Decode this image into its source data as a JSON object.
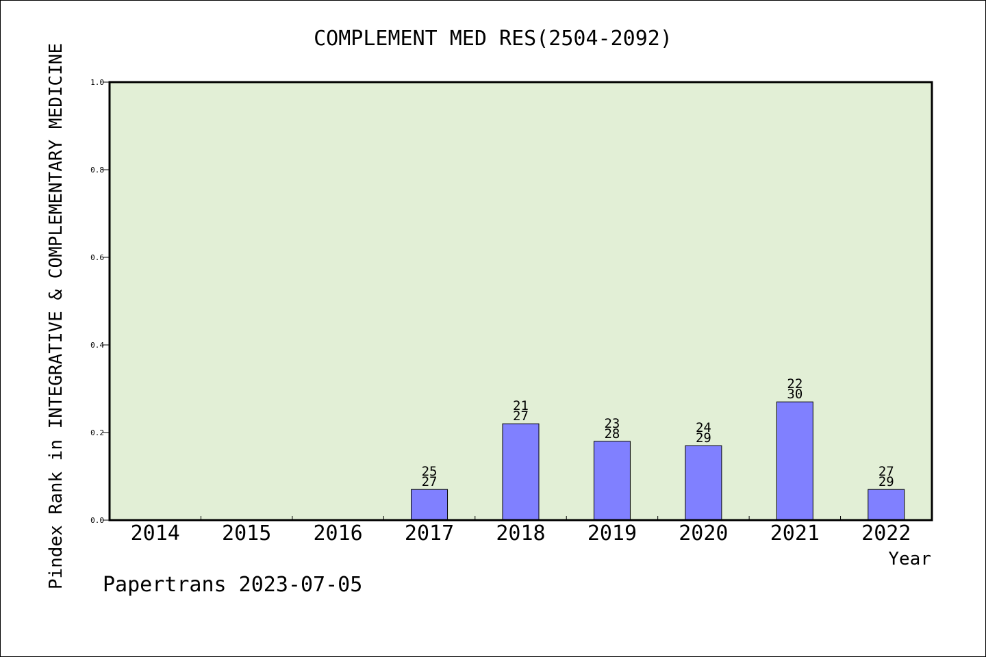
{
  "chart_data": {
    "type": "bar",
    "title": "COMPLEMENT MED RES(2504-2092)",
    "ylabel": "Pindex Rank in INTEGRATIVE & COMPLEMENTARY MEDICINE",
    "xlabel": "Year",
    "footer": "Papertrans 2023-07-05",
    "ylim": [
      0,
      1.0
    ],
    "yticks": [
      "0.0",
      "0.2",
      "0.4",
      "0.6",
      "0.8",
      "1.0"
    ],
    "ytick_values": [
      0,
      0.2,
      0.4,
      0.6,
      0.8,
      1.0
    ],
    "categories": [
      "2014",
      "2015",
      "2016",
      "2017",
      "2018",
      "2019",
      "2020",
      "2021",
      "2022"
    ],
    "values": [
      null,
      null,
      null,
      0.07,
      0.22,
      0.18,
      0.17,
      0.27,
      0.07
    ],
    "labels_top": [
      null,
      null,
      null,
      "25",
      "21",
      "23",
      "24",
      "22",
      "27"
    ],
    "labels_bottom": [
      null,
      null,
      null,
      "27",
      "27",
      "28",
      "29",
      "30",
      "29"
    ],
    "grid": false,
    "legend": "none",
    "colors": {
      "plot_background": "#e2efd6",
      "bar_fill": "#8080ff",
      "bar_stroke": "#000000"
    }
  }
}
